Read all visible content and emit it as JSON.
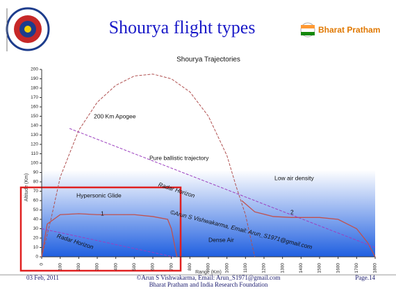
{
  "header": {
    "title": "Shourya flight types",
    "brand": "Bharat Pratham"
  },
  "chart_data": {
    "type": "line",
    "title": "Shourya Trajectories",
    "x_label": "Range (Km)",
    "y_label": "Altitude (Km)",
    "xlim": [
      0,
      1800
    ],
    "ylim": [
      0,
      200
    ],
    "xticks": [
      0,
      100,
      200,
      300,
      400,
      500,
      600,
      700,
      800,
      900,
      1000,
      1100,
      1200,
      1300,
      1400,
      1500,
      1600,
      1700,
      1800
    ],
    "yticks": [
      0,
      10,
      20,
      30,
      40,
      50,
      60,
      70,
      80,
      90,
      100,
      110,
      120,
      130,
      140,
      150,
      160,
      170,
      180,
      190,
      200
    ],
    "series": [
      {
        "color": "#b05050",
        "dashed": true,
        "x": [
          0,
          50,
          100,
          200,
          300,
          400,
          500,
          600,
          700,
          800,
          900,
          1000,
          1050,
          1100,
          1150
        ],
        "values": [
          0,
          40,
          85,
          135,
          165,
          183,
          193,
          195,
          190,
          176,
          150,
          108,
          75,
          45,
          0
        ]
      },
      {
        "color": "#c0504d",
        "dashed": false,
        "x": [
          0,
          30,
          100,
          200,
          300,
          400,
          500,
          600,
          680,
          700,
          730
        ],
        "values": [
          0,
          35,
          45,
          46,
          45,
          45,
          45,
          43,
          40,
          30,
          0
        ]
      },
      {
        "color": "#c0504d",
        "dashed": false,
        "x": [
          1080,
          1150,
          1250,
          1350,
          1500,
          1600,
          1700,
          1760,
          1800
        ],
        "values": [
          60,
          48,
          43,
          42,
          42,
          40,
          30,
          15,
          0
        ]
      },
      {
        "color": "#9b3fbf",
        "dashed": true,
        "x": [
          150,
          1800
        ],
        "values": [
          137,
          10
        ]
      },
      {
        "color": "#9b3fbf",
        "dashed": true,
        "x": [
          0,
          710
        ],
        "values": [
          30,
          0
        ]
      }
    ],
    "annotations": [
      "200 Km Apogee",
      "Pure ballistic trajectory",
      "Low air density",
      "Radar Horizon",
      "Hypersonic Glide",
      "1",
      "2",
      "©Arun S Vishwakarma, Email: Arun_S1971@gmail.com",
      "Radar Horizon",
      "Dense Air"
    ]
  },
  "footer": {
    "date": "03 Feb, 2011",
    "credit": "©Arun S Vishwakarma, Email: Arun_S1971@gmail.com",
    "page": "Page.14",
    "org": "Bharat Pratham and India Research Foundation"
  }
}
